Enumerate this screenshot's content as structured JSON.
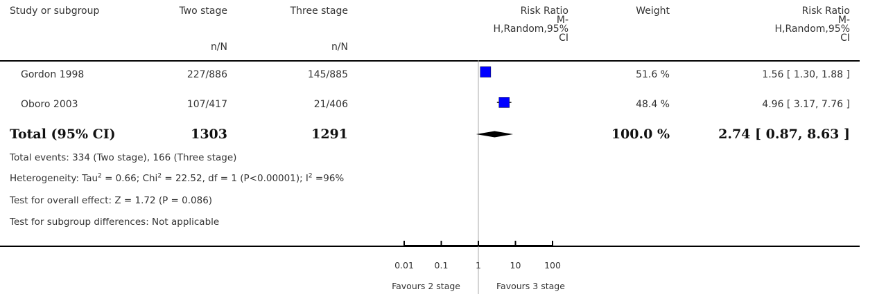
{
  "headers": {
    "study": "Study or subgroup",
    "group1": "Two stage",
    "group1_sub": "n/N",
    "group2": "Three stage",
    "group2_sub": "n/N",
    "effect_line1": "Risk Ratio",
    "effect_line2": "M-",
    "effect_line3": "H,Random,95%",
    "effect_line4": "CI",
    "weight": "Weight",
    "ci_line1": "Risk Ratio",
    "ci_line2": "M-",
    "ci_line3": "H,Random,95%",
    "ci_line4": "CI"
  },
  "studies": [
    {
      "name": "Gordon 1998",
      "g1": "227/886",
      "g2": "145/885",
      "weight": "51.6 %",
      "ci_text": "1.56 [ 1.30, 1.88 ]"
    },
    {
      "name": "Oboro 2003",
      "g1": "107/417",
      "g2": "21/406",
      "weight": "48.4 %",
      "ci_text": "4.96 [ 3.17, 7.76 ]"
    }
  ],
  "total": {
    "label": "Total (95% CI)",
    "g1": "1303",
    "g2": "1291",
    "weight": "100.0 %",
    "ci_text": "2.74 [ 0.87, 8.63 ]"
  },
  "notes": {
    "events": "Total events: 334 (Two stage), 166 (Three stage)",
    "heterogeneity_a": "Heterogeneity: Tau",
    "heterogeneity_b": " = 0.66; Chi",
    "heterogeneity_c": " = 22.52, df = 1 (P<0.00001); I",
    "heterogeneity_d": " =96%",
    "superscript": "2",
    "overall": "Test for overall effect: Z = 1.72 (P = 0.086)",
    "subgroup": "Test for subgroup differences: Not applicable"
  },
  "axis": {
    "favours_left": "Favours 2 stage",
    "favours_right": "Favours 3 stage"
  },
  "colors": {
    "study_box": "#0000ff",
    "diamond": "#000000"
  },
  "chart_data": {
    "type": "forest",
    "x_scale": "log",
    "xlim": [
      0.01,
      100
    ],
    "null_value": 1,
    "ticks": [
      0.01,
      0.1,
      1,
      10,
      100
    ],
    "tick_labels": [
      "0.01",
      "0.1",
      "1",
      "10",
      "100"
    ],
    "studies": [
      {
        "name": "Gordon 1998",
        "rr": 1.56,
        "lower": 1.3,
        "upper": 1.88,
        "weight": 51.6
      },
      {
        "name": "Oboro 2003",
        "rr": 4.96,
        "lower": 3.17,
        "upper": 7.76,
        "weight": 48.4
      }
    ],
    "pooled": {
      "rr": 2.74,
      "lower": 0.87,
      "upper": 8.63
    }
  }
}
